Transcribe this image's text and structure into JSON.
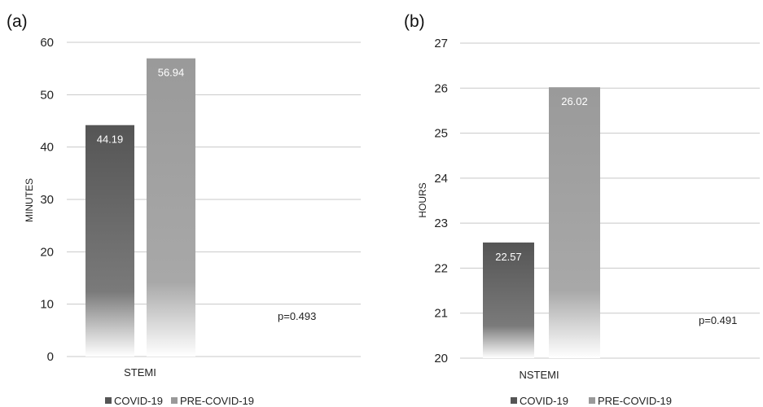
{
  "colors": {
    "covid_top": "#555555",
    "precovid_top": "#999999",
    "grid": "#c8c8c8"
  },
  "chart_data": [
    {
      "type": "bar",
      "panel_label": "(a)",
      "title": "",
      "ylabel": "MINUTES",
      "ylim": [
        0,
        60
      ],
      "yticks": [
        0,
        10,
        20,
        30,
        40,
        50,
        60
      ],
      "categories": [
        "STEMI"
      ],
      "series": [
        {
          "name": "COVID-19",
          "values": [
            44.19
          ],
          "labels": [
            "44.19"
          ]
        },
        {
          "name": "PRE-COVID-19",
          "values": [
            56.94
          ],
          "labels": [
            "56.94"
          ]
        }
      ],
      "annotation": "p=0.493",
      "legend": [
        "COVID-19",
        "PRE-COVID-19"
      ],
      "legend_position": "bottom",
      "grid": true
    },
    {
      "type": "bar",
      "panel_label": "(b)",
      "title": "",
      "ylabel": "HOURS",
      "ylim": [
        20,
        27
      ],
      "yticks": [
        20,
        21,
        22,
        23,
        24,
        25,
        26,
        27
      ],
      "categories": [
        "NSTEMI"
      ],
      "series": [
        {
          "name": "COVID-19",
          "values": [
            22.57
          ],
          "labels": [
            "22.57"
          ]
        },
        {
          "name": "PRE-COVID-19",
          "values": [
            26.02
          ],
          "labels": [
            "26.02"
          ]
        }
      ],
      "annotation": "p=0.491",
      "legend": [
        "COVID-19",
        "PRE-COVID-19"
      ],
      "legend_position": "bottom",
      "grid": true
    }
  ]
}
